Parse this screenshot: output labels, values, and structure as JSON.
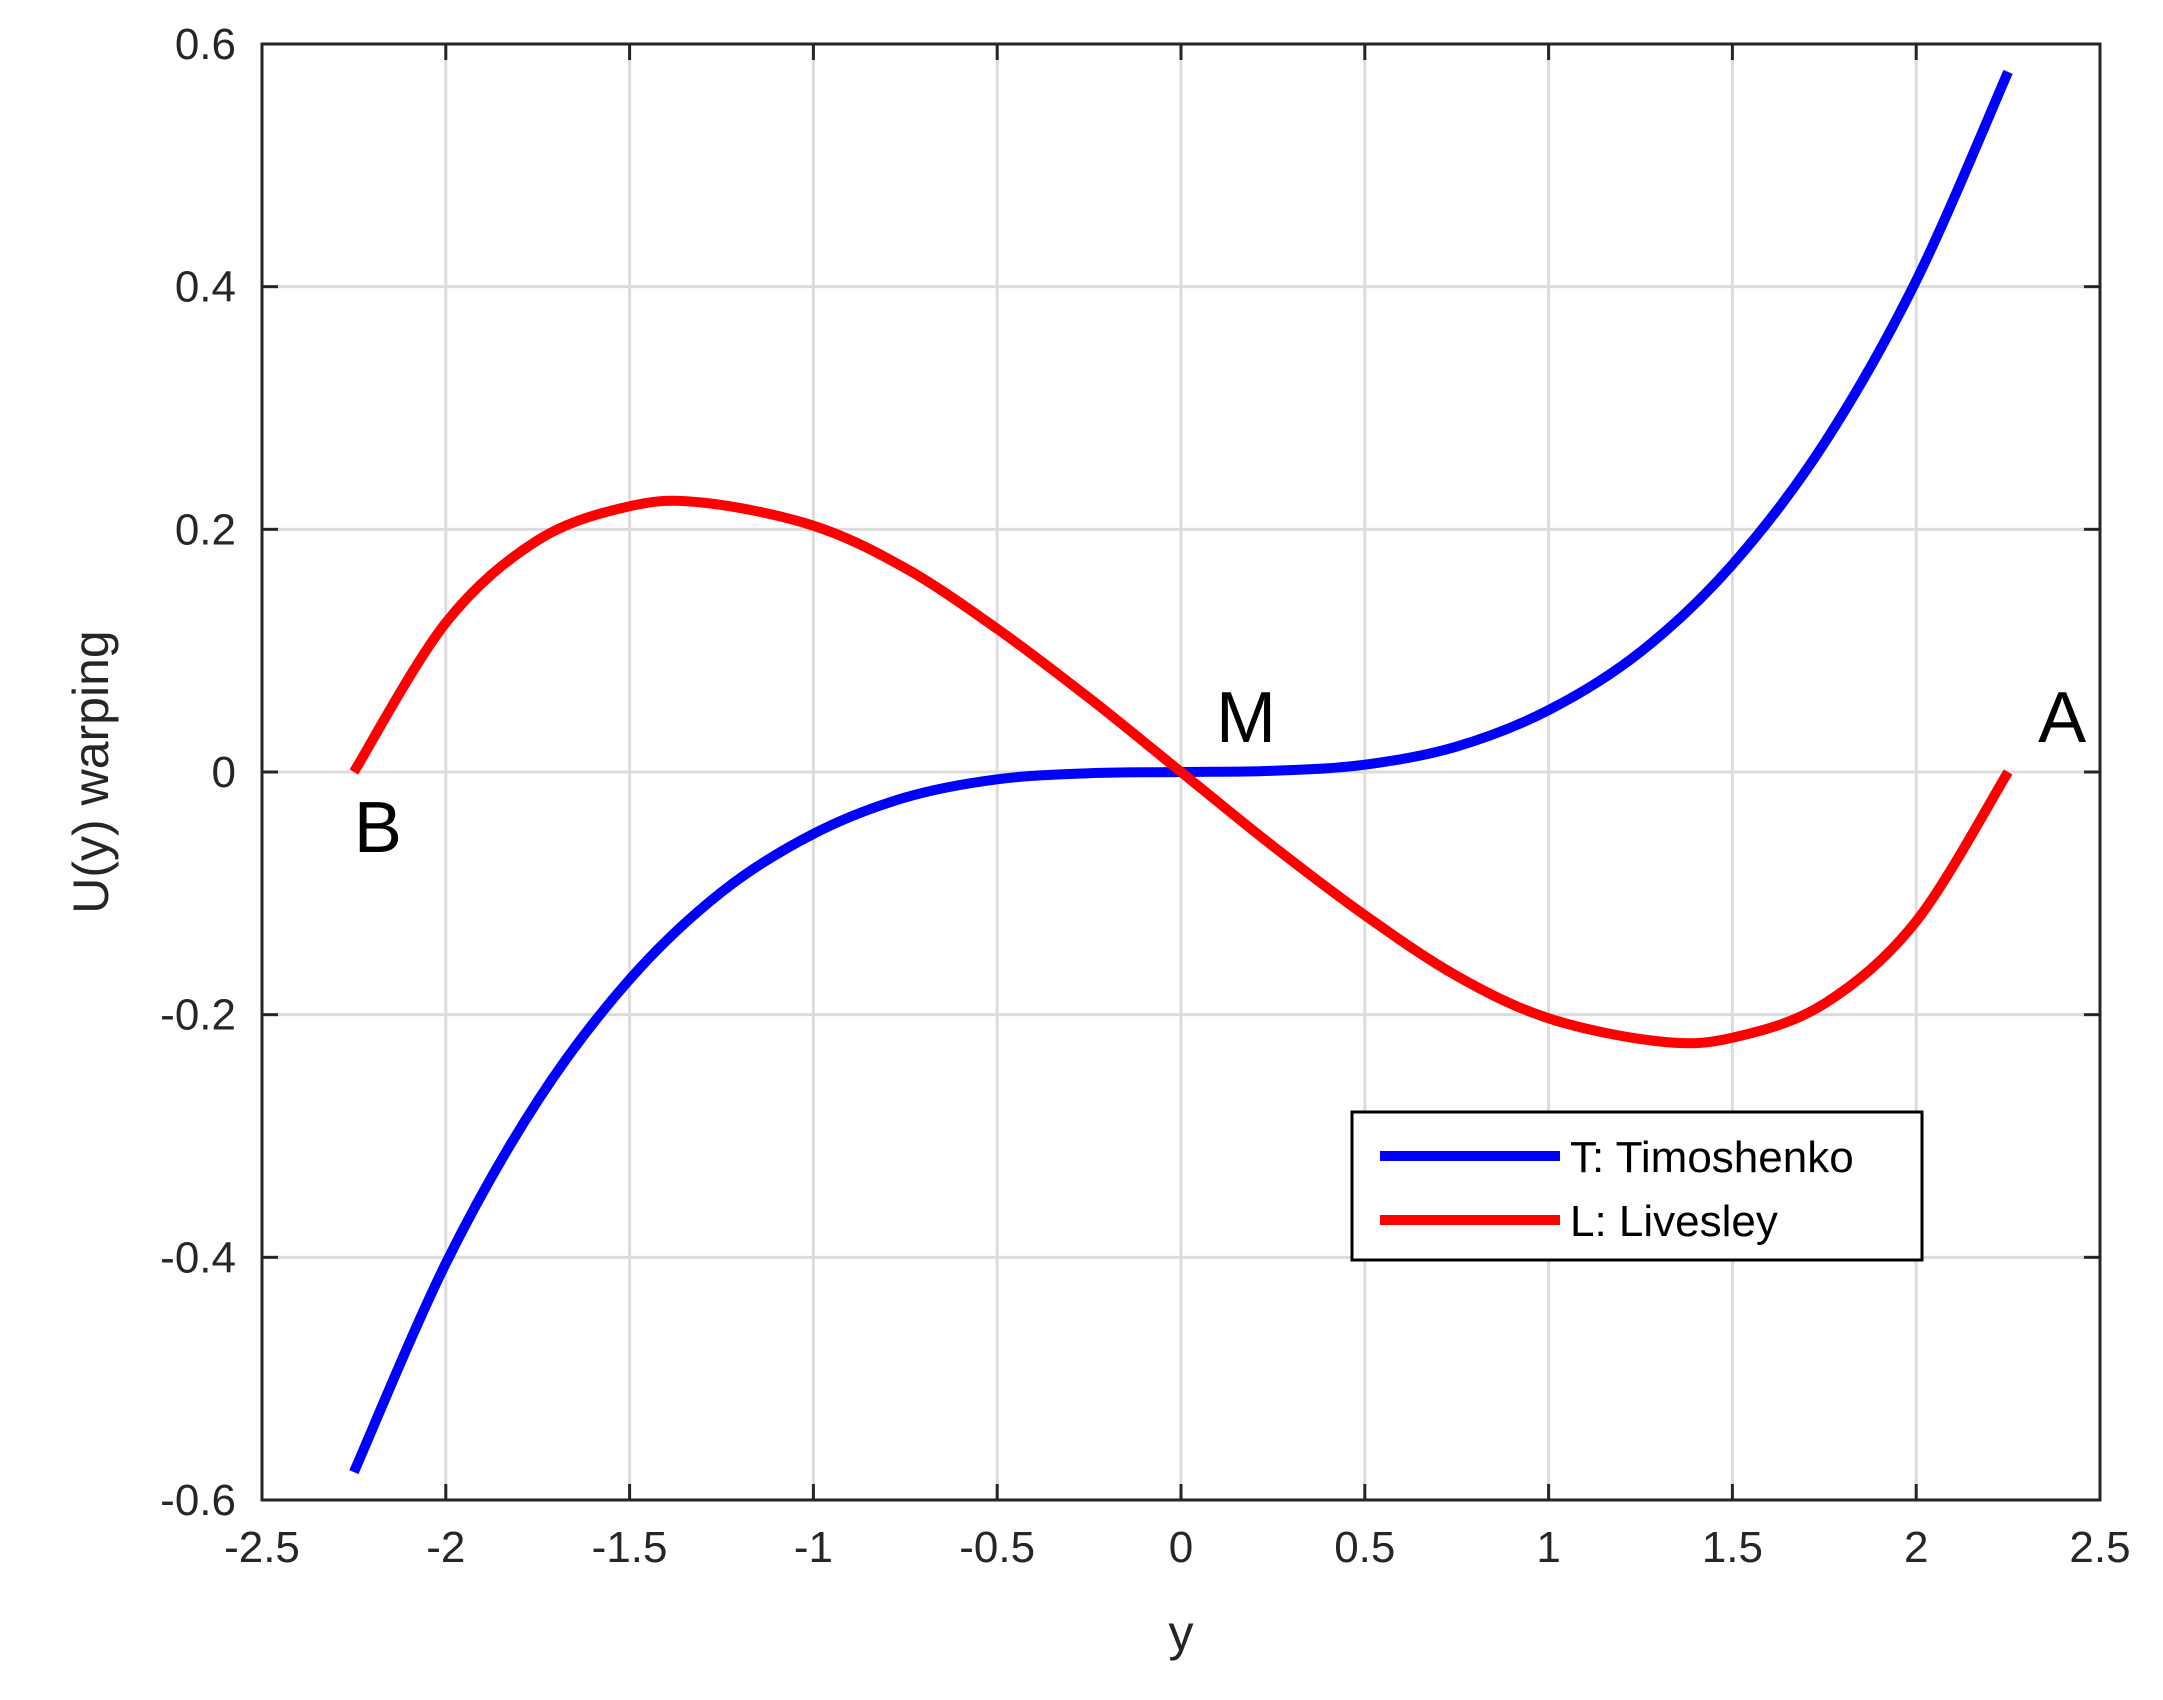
{
  "chart_data": {
    "type": "line",
    "title": "",
    "xlabel": "y",
    "ylabel": "U(y) warping",
    "xlim": [
      -2.5,
      2.5
    ],
    "ylim": [
      -0.6,
      0.6
    ],
    "xticks": [
      "-2.5",
      "-2",
      "-1.5",
      "-1",
      "-0.5",
      "0",
      "0.5",
      "1",
      "1.5",
      "2",
      "2.5"
    ],
    "yticks": [
      "-0.6",
      "-0.4",
      "-0.2",
      "0",
      "0.2",
      "0.4",
      "0.6"
    ],
    "grid": true,
    "legend_position": "lower-right",
    "series": [
      {
        "name": "T: Timoshenko",
        "color": "#0000ff",
        "x": [
          -2.25,
          -2.0,
          -1.75,
          -1.5,
          -1.25,
          -1.0,
          -0.75,
          -0.5,
          -0.25,
          0.0,
          0.25,
          0.5,
          0.75,
          1.0,
          1.25,
          1.5,
          1.75,
          2.0,
          2.25
        ],
        "y": [
          -0.577,
          -0.405,
          -0.271,
          -0.171,
          -0.099,
          -0.051,
          -0.021,
          -0.006,
          -0.001,
          0.0,
          0.001,
          0.006,
          0.021,
          0.051,
          0.099,
          0.171,
          0.271,
          0.405,
          0.577
        ]
      },
      {
        "name": "L: Livesley",
        "color": "#ff0000",
        "x": [
          -2.25,
          -2.0,
          -1.75,
          -1.5,
          -1.3,
          -1.0,
          -0.75,
          -0.5,
          -0.25,
          0.0,
          0.25,
          0.5,
          0.75,
          1.0,
          1.3,
          1.5,
          1.75,
          2.0,
          2.25
        ],
        "y": [
          0.0,
          0.123,
          0.191,
          0.219,
          0.222,
          0.203,
          0.168,
          0.118,
          0.061,
          0.0,
          -0.061,
          -0.118,
          -0.168,
          -0.203,
          -0.222,
          -0.219,
          -0.191,
          -0.123,
          0.0
        ]
      }
    ],
    "annotations": [
      {
        "text": "A",
        "x": 2.25,
        "y": 0.0
      },
      {
        "text": "B",
        "x": -2.25,
        "y": 0.0
      },
      {
        "text": "M",
        "x": 0.0,
        "y": 0.0
      }
    ]
  }
}
